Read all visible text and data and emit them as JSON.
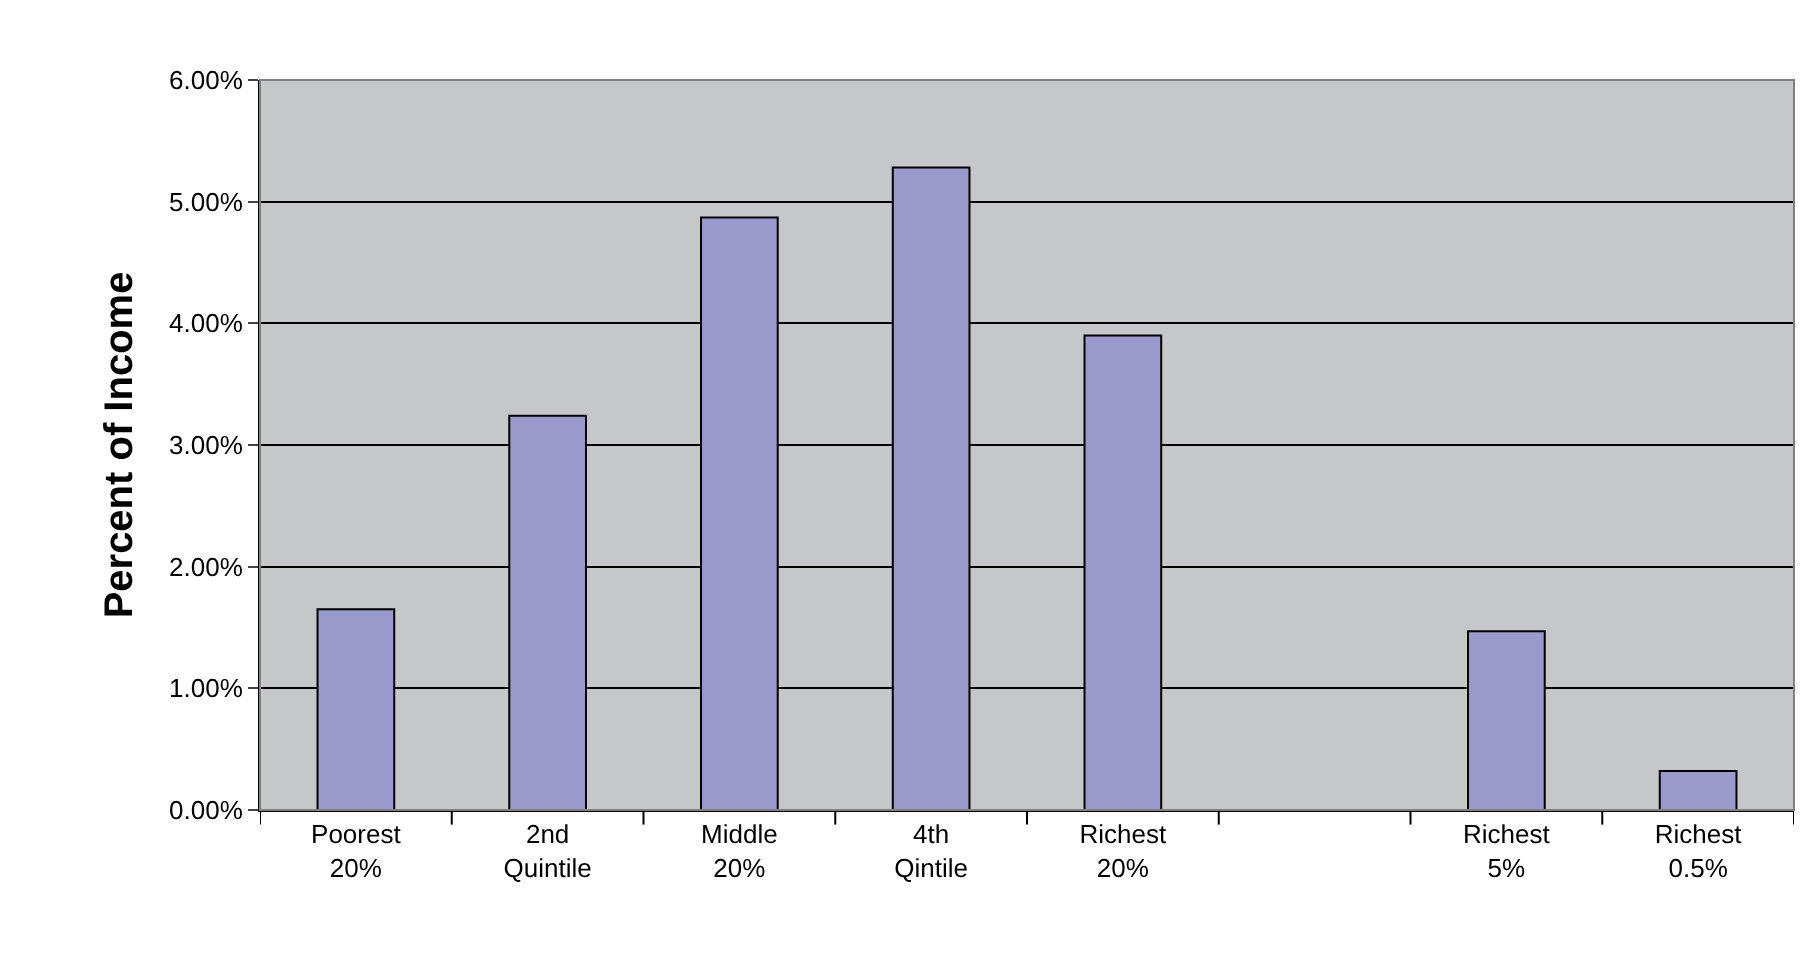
{
  "chart_data": {
    "type": "bar",
    "ylabel": "Percent of Income",
    "categories": [
      "Poorest\n20%",
      "2nd\nQuintile",
      "Middle\n20%",
      "4th\nQintile",
      "Richest\n20%",
      null,
      "Richest\n5%",
      "Richest\n0.5%"
    ],
    "series": [
      {
        "color": "#9999cc",
        "values": [
          1.65,
          3.24,
          4.87,
          5.28,
          3.9,
          null,
          1.47,
          0.32
        ]
      }
    ],
    "ylim": [
      0,
      6
    ],
    "yticks": [
      {
        "value": 0,
        "label": "0.00%"
      },
      {
        "value": 1,
        "label": "1.00%"
      },
      {
        "value": 2,
        "label": "2.00%"
      },
      {
        "value": 3,
        "label": "3.00%"
      },
      {
        "value": 4,
        "label": "4.00%"
      },
      {
        "value": 5,
        "label": "5.00%"
      },
      {
        "value": 6,
        "label": "6.00%"
      }
    ],
    "grid": "y"
  }
}
